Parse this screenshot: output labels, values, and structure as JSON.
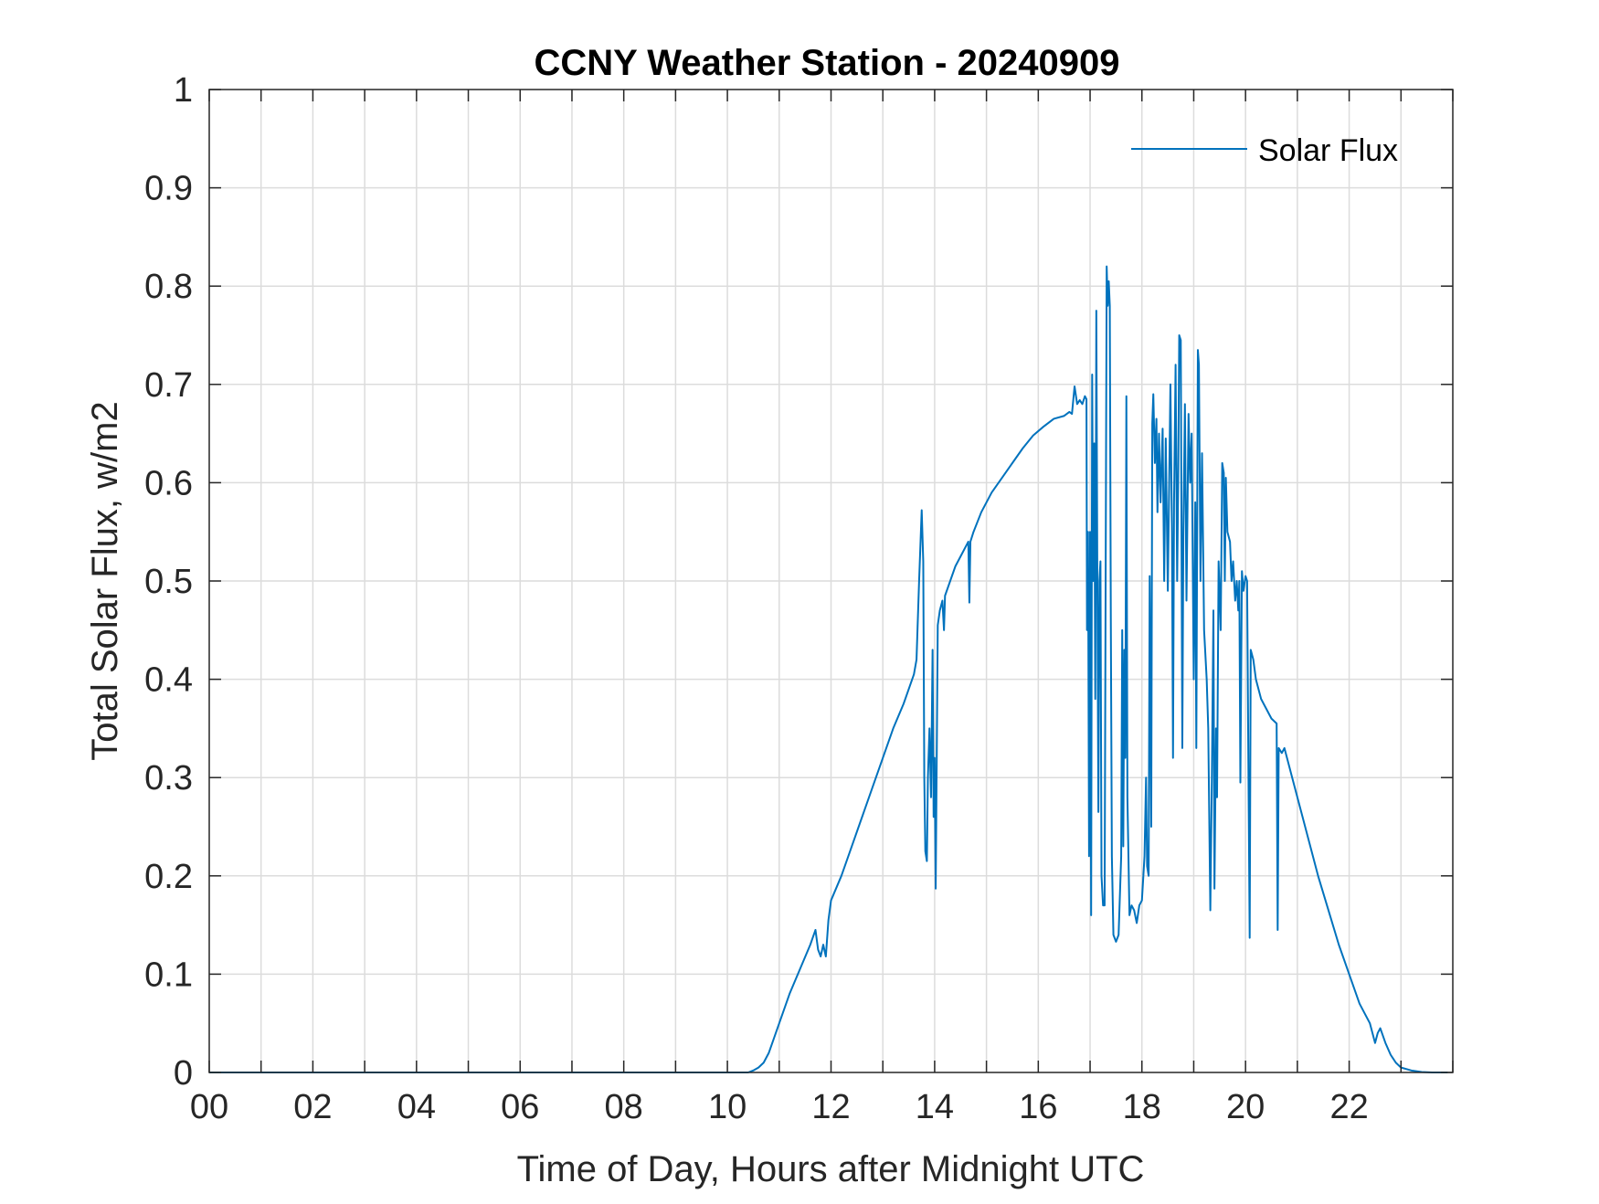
{
  "chart_data": {
    "type": "line",
    "title": "CCNY Weather Station - 20240909",
    "xlabel": "Time of Day, Hours after Midnight UTC",
    "ylabel": "Total Solar Flux, w/m2",
    "xlim": [
      0,
      24
    ],
    "ylim": [
      0,
      1
    ],
    "x_ticks": [
      0,
      2,
      4,
      6,
      8,
      10,
      12,
      14,
      16,
      18,
      20,
      22
    ],
    "x_tick_labels": [
      "00",
      "02",
      "04",
      "06",
      "08",
      "10",
      "12",
      "14",
      "16",
      "18",
      "20",
      "22"
    ],
    "x_minor_grid_step": 1,
    "y_ticks": [
      0,
      0.1,
      0.2,
      0.3,
      0.4,
      0.5,
      0.6,
      0.7,
      0.8,
      0.9,
      1
    ],
    "y_tick_labels": [
      "0",
      "0.1",
      "0.2",
      "0.3",
      "0.4",
      "0.5",
      "0.6",
      "0.7",
      "0.8",
      "0.9",
      "1"
    ],
    "grid": true,
    "legend_position": "top-right",
    "series": [
      {
        "name": "Solar Flux",
        "color": "#0072BD",
        "points": [
          [
            0,
            0
          ],
          [
            10.4,
            0
          ],
          [
            10.5,
            0.002
          ],
          [
            10.6,
            0.005
          ],
          [
            10.7,
            0.01
          ],
          [
            10.8,
            0.02
          ],
          [
            10.9,
            0.035
          ],
          [
            11.0,
            0.05
          ],
          [
            11.2,
            0.08
          ],
          [
            11.4,
            0.105
          ],
          [
            11.6,
            0.13
          ],
          [
            11.7,
            0.145
          ],
          [
            11.75,
            0.125
          ],
          [
            11.8,
            0.118
          ],
          [
            11.85,
            0.13
          ],
          [
            11.9,
            0.118
          ],
          [
            11.95,
            0.155
          ],
          [
            12.0,
            0.175
          ],
          [
            12.2,
            0.2
          ],
          [
            12.4,
            0.23
          ],
          [
            12.6,
            0.26
          ],
          [
            12.8,
            0.29
          ],
          [
            13.0,
            0.32
          ],
          [
            13.2,
            0.35
          ],
          [
            13.4,
            0.375
          ],
          [
            13.6,
            0.405
          ],
          [
            13.65,
            0.42
          ],
          [
            13.7,
            0.5
          ],
          [
            13.75,
            0.572
          ],
          [
            13.78,
            0.52
          ],
          [
            13.8,
            0.3
          ],
          [
            13.82,
            0.225
          ],
          [
            13.85,
            0.215
          ],
          [
            13.87,
            0.3
          ],
          [
            13.9,
            0.35
          ],
          [
            13.93,
            0.28
          ],
          [
            13.96,
            0.43
          ],
          [
            13.98,
            0.26
          ],
          [
            14.0,
            0.32
          ],
          [
            14.02,
            0.187
          ],
          [
            14.04,
            0.32
          ],
          [
            14.06,
            0.455
          ],
          [
            14.1,
            0.47
          ],
          [
            14.15,
            0.48
          ],
          [
            14.18,
            0.45
          ],
          [
            14.2,
            0.485
          ],
          [
            14.3,
            0.5
          ],
          [
            14.4,
            0.515
          ],
          [
            14.5,
            0.525
          ],
          [
            14.6,
            0.535
          ],
          [
            14.65,
            0.54
          ],
          [
            14.67,
            0.478
          ],
          [
            14.69,
            0.54
          ],
          [
            14.75,
            0.55
          ],
          [
            14.9,
            0.57
          ],
          [
            15.1,
            0.59
          ],
          [
            15.3,
            0.605
          ],
          [
            15.5,
            0.62
          ],
          [
            15.7,
            0.635
          ],
          [
            15.9,
            0.648
          ],
          [
            16.1,
            0.657
          ],
          [
            16.3,
            0.665
          ],
          [
            16.5,
            0.668
          ],
          [
            16.6,
            0.672
          ],
          [
            16.65,
            0.67
          ],
          [
            16.7,
            0.698
          ],
          [
            16.75,
            0.68
          ],
          [
            16.8,
            0.684
          ],
          [
            16.85,
            0.68
          ],
          [
            16.9,
            0.688
          ],
          [
            16.93,
            0.685
          ],
          [
            16.94,
            0.45
          ],
          [
            16.96,
            0.55
          ],
          [
            16.98,
            0.22
          ],
          [
            17.0,
            0.55
          ],
          [
            17.02,
            0.16
          ],
          [
            17.04,
            0.71
          ],
          [
            17.06,
            0.5
          ],
          [
            17.08,
            0.64
          ],
          [
            17.1,
            0.38
          ],
          [
            17.12,
            0.775
          ],
          [
            17.14,
            0.5
          ],
          [
            17.16,
            0.265
          ],
          [
            17.18,
            0.5
          ],
          [
            17.2,
            0.52
          ],
          [
            17.22,
            0.2
          ],
          [
            17.25,
            0.17
          ],
          [
            17.28,
            0.17
          ],
          [
            17.3,
            0.5
          ],
          [
            17.32,
            0.82
          ],
          [
            17.34,
            0.78
          ],
          [
            17.36,
            0.805
          ],
          [
            17.38,
            0.78
          ],
          [
            17.4,
            0.46
          ],
          [
            17.42,
            0.22
          ],
          [
            17.45,
            0.14
          ],
          [
            17.5,
            0.133
          ],
          [
            17.55,
            0.14
          ],
          [
            17.6,
            0.22
          ],
          [
            17.62,
            0.45
          ],
          [
            17.64,
            0.23
          ],
          [
            17.66,
            0.43
          ],
          [
            17.68,
            0.32
          ],
          [
            17.7,
            0.688
          ],
          [
            17.72,
            0.28
          ],
          [
            17.74,
            0.22
          ],
          [
            17.76,
            0.16
          ],
          [
            17.8,
            0.17
          ],
          [
            17.85,
            0.165
          ],
          [
            17.9,
            0.152
          ],
          [
            17.95,
            0.17
          ],
          [
            18.0,
            0.175
          ],
          [
            18.05,
            0.22
          ],
          [
            18.08,
            0.3
          ],
          [
            18.1,
            0.21
          ],
          [
            18.13,
            0.2
          ],
          [
            18.15,
            0.505
          ],
          [
            18.18,
            0.25
          ],
          [
            18.2,
            0.66
          ],
          [
            18.22,
            0.69
          ],
          [
            18.25,
            0.62
          ],
          [
            18.28,
            0.665
          ],
          [
            18.3,
            0.57
          ],
          [
            18.33,
            0.65
          ],
          [
            18.36,
            0.58
          ],
          [
            18.4,
            0.655
          ],
          [
            18.43,
            0.5
          ],
          [
            18.46,
            0.645
          ],
          [
            18.5,
            0.49
          ],
          [
            18.55,
            0.7
          ],
          [
            18.58,
            0.55
          ],
          [
            18.6,
            0.32
          ],
          [
            18.62,
            0.58
          ],
          [
            18.65,
            0.72
          ],
          [
            18.68,
            0.5
          ],
          [
            18.7,
            0.6
          ],
          [
            18.72,
            0.75
          ],
          [
            18.75,
            0.745
          ],
          [
            18.78,
            0.33
          ],
          [
            18.8,
            0.55
          ],
          [
            18.83,
            0.68
          ],
          [
            18.86,
            0.48
          ],
          [
            18.9,
            0.67
          ],
          [
            18.93,
            0.6
          ],
          [
            18.96,
            0.65
          ],
          [
            19.0,
            0.4
          ],
          [
            19.03,
            0.58
          ],
          [
            19.05,
            0.33
          ],
          [
            19.08,
            0.735
          ],
          [
            19.1,
            0.72
          ],
          [
            19.13,
            0.5
          ],
          [
            19.16,
            0.63
          ],
          [
            19.2,
            0.45
          ],
          [
            19.25,
            0.4
          ],
          [
            19.28,
            0.35
          ],
          [
            19.32,
            0.165
          ],
          [
            19.35,
            0.3
          ],
          [
            19.38,
            0.47
          ],
          [
            19.4,
            0.187
          ],
          [
            19.43,
            0.35
          ],
          [
            19.45,
            0.28
          ],
          [
            19.48,
            0.52
          ],
          [
            19.52,
            0.45
          ],
          [
            19.55,
            0.62
          ],
          [
            19.58,
            0.61
          ],
          [
            19.6,
            0.5
          ],
          [
            19.62,
            0.605
          ],
          [
            19.65,
            0.55
          ],
          [
            19.7,
            0.54
          ],
          [
            19.73,
            0.5
          ],
          [
            19.76,
            0.52
          ],
          [
            19.8,
            0.48
          ],
          [
            19.83,
            0.5
          ],
          [
            19.86,
            0.47
          ],
          [
            19.88,
            0.5
          ],
          [
            19.9,
            0.295
          ],
          [
            19.93,
            0.51
          ],
          [
            19.96,
            0.49
          ],
          [
            20.0,
            0.505
          ],
          [
            20.03,
            0.5
          ],
          [
            20.05,
            0.35
          ],
          [
            20.08,
            0.137
          ],
          [
            20.1,
            0.43
          ],
          [
            20.15,
            0.42
          ],
          [
            20.2,
            0.4
          ],
          [
            20.3,
            0.38
          ],
          [
            20.4,
            0.37
          ],
          [
            20.5,
            0.36
          ],
          [
            20.6,
            0.355
          ],
          [
            20.62,
            0.145
          ],
          [
            20.64,
            0.33
          ],
          [
            20.7,
            0.325
          ],
          [
            20.75,
            0.33
          ],
          [
            20.8,
            0.32
          ],
          [
            20.9,
            0.3
          ],
          [
            21.0,
            0.28
          ],
          [
            21.2,
            0.24
          ],
          [
            21.4,
            0.2
          ],
          [
            21.6,
            0.165
          ],
          [
            21.8,
            0.13
          ],
          [
            22.0,
            0.1
          ],
          [
            22.2,
            0.07
          ],
          [
            22.4,
            0.05
          ],
          [
            22.5,
            0.03
          ],
          [
            22.55,
            0.04
          ],
          [
            22.6,
            0.045
          ],
          [
            22.7,
            0.03
          ],
          [
            22.8,
            0.018
          ],
          [
            22.9,
            0.01
          ],
          [
            23.0,
            0.005
          ],
          [
            23.2,
            0.002
          ],
          [
            23.4,
            0.0005
          ],
          [
            23.6,
            0
          ],
          [
            23.9,
            0
          ]
        ]
      }
    ]
  }
}
